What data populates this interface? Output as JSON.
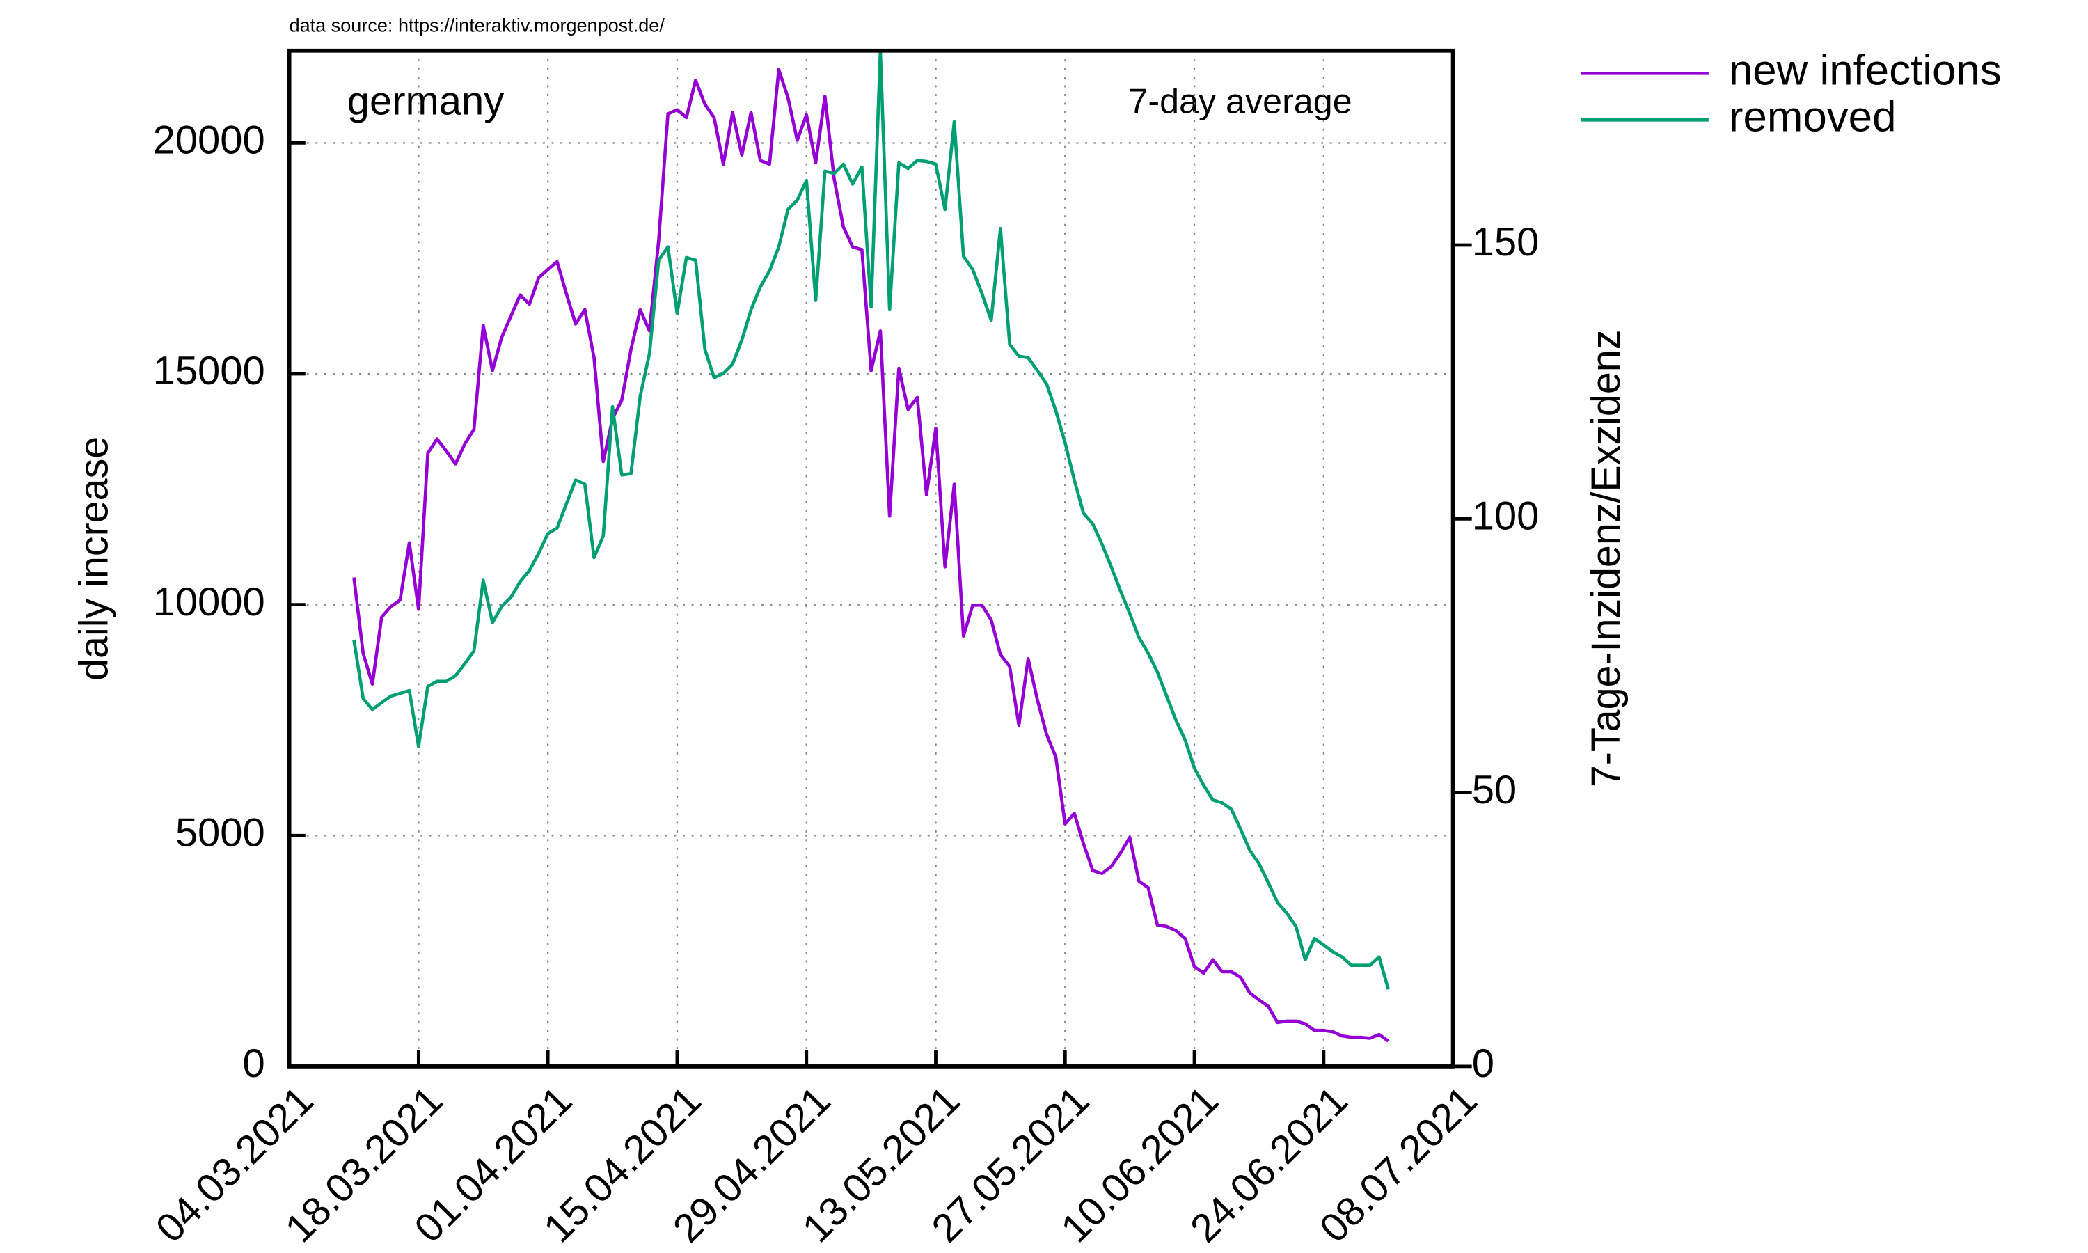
{
  "chart_data": {
    "type": "line",
    "source": "data source: https://interaktiv.morgenpost.de/",
    "region": "germany",
    "note": "7-day average",
    "ylabel": "daily increase",
    "y2label": "7-Tage-Inzidenz/Exzidenz",
    "xlim": [
      "04.03.2021",
      "08.07.2021"
    ],
    "xticks": [
      "04.03.2021",
      "18.03.2021",
      "01.04.2021",
      "15.04.2021",
      "29.04.2021",
      "13.05.2021",
      "27.05.2021",
      "10.06.2021",
      "24.06.2021",
      "08.07.2021"
    ],
    "ylim": [
      0,
      22000
    ],
    "yticks": [
      0,
      5000,
      10000,
      15000,
      20000
    ],
    "y2lim": [
      0,
      185.5
    ],
    "y2ticks": [
      0,
      50,
      100,
      150
    ],
    "grid": true,
    "legend": "outside-top-right",
    "x": [
      "11.03.2021",
      "12.03.2021",
      "13.03.2021",
      "14.03.2021",
      "15.03.2021",
      "16.03.2021",
      "17.03.2021",
      "18.03.2021",
      "19.03.2021",
      "20.03.2021",
      "21.03.2021",
      "22.03.2021",
      "23.03.2021",
      "24.03.2021",
      "25.03.2021",
      "26.03.2021",
      "27.03.2021",
      "28.03.2021",
      "29.03.2021",
      "30.03.2021",
      "31.03.2021",
      "01.04.2021",
      "02.04.2021",
      "03.04.2021",
      "04.04.2021",
      "05.04.2021",
      "06.04.2021",
      "07.04.2021",
      "08.04.2021",
      "09.04.2021",
      "10.04.2021",
      "11.04.2021",
      "12.04.2021",
      "13.04.2021",
      "14.04.2021",
      "15.04.2021",
      "16.04.2021",
      "17.04.2021",
      "18.04.2021",
      "19.04.2021",
      "20.04.2021",
      "21.04.2021",
      "22.04.2021",
      "23.04.2021",
      "24.04.2021",
      "25.04.2021",
      "26.04.2021",
      "27.04.2021",
      "28.04.2021",
      "29.04.2021",
      "30.04.2021",
      "01.05.2021",
      "02.05.2021",
      "03.05.2021",
      "04.05.2021",
      "05.05.2021",
      "06.05.2021",
      "07.05.2021",
      "08.05.2021",
      "09.05.2021",
      "10.05.2021",
      "11.05.2021",
      "12.05.2021",
      "13.05.2021",
      "14.05.2021",
      "15.05.2021",
      "16.05.2021",
      "17.05.2021",
      "18.05.2021",
      "19.05.2021",
      "20.05.2021",
      "21.05.2021",
      "22.05.2021",
      "23.05.2021",
      "24.05.2021",
      "25.05.2021",
      "26.05.2021",
      "27.05.2021",
      "28.05.2021",
      "29.05.2021",
      "30.05.2021",
      "31.05.2021",
      "01.06.2021",
      "02.06.2021",
      "03.06.2021",
      "04.06.2021",
      "05.06.2021",
      "06.06.2021",
      "07.06.2021",
      "08.06.2021",
      "09.06.2021",
      "10.06.2021",
      "11.06.2021",
      "12.06.2021",
      "13.06.2021",
      "14.06.2021",
      "15.06.2021",
      "16.06.2021",
      "17.06.2021",
      "18.06.2021",
      "19.06.2021",
      "20.06.2021",
      "21.06.2021",
      "22.06.2021",
      "23.06.2021",
      "24.06.2021",
      "25.06.2021",
      "26.06.2021",
      "27.06.2021",
      "28.06.2021",
      "29.06.2021",
      "30.06.2021",
      "01.07.2021"
    ],
    "series": [
      {
        "name": "new infections",
        "color": "#9400d3",
        "values": [
          10590,
          8950,
          8280,
          9730,
          9960,
          10100,
          11340,
          9900,
          13280,
          13590,
          13330,
          13050,
          13480,
          13800,
          16050,
          15070,
          15790,
          16250,
          16710,
          16510,
          17080,
          17260,
          17430,
          16740,
          16080,
          16390,
          15350,
          13100,
          14030,
          14430,
          15530,
          16390,
          15930,
          17890,
          20630,
          20720,
          20550,
          21360,
          20840,
          20550,
          19540,
          20660,
          19740,
          20660,
          19620,
          19540,
          21590,
          20980,
          20060,
          20610,
          19570,
          21010,
          19220,
          18180,
          17750,
          17690,
          15070,
          15930,
          11920,
          15120,
          14230,
          14490,
          12380,
          13820,
          10820,
          12610,
          9320,
          9990,
          9990,
          9670,
          8920,
          8660,
          7390,
          8830,
          7940,
          7190,
          6700,
          5250,
          5480,
          4820,
          4240,
          4180,
          4330,
          4620,
          4960,
          4010,
          3870,
          3060,
          3030,
          2940,
          2770,
          2160,
          2020,
          2310,
          2050,
          2050,
          1930,
          1590,
          1440,
          1300,
          950,
          980,
          980,
          920,
          780,
          780,
          750,
          660,
          630,
          630,
          610,
          690,
          550
        ]
      },
      {
        "name": "removed",
        "color": "#009e73",
        "values": [
          9240,
          7970,
          7730,
          7880,
          8020,
          8080,
          8140,
          6930,
          8230,
          8340,
          8340,
          8460,
          8720,
          9000,
          10530,
          9610,
          9960,
          10160,
          10500,
          10740,
          11110,
          11540,
          11660,
          12180,
          12700,
          12610,
          11020,
          11490,
          14290,
          12810,
          12840,
          14520,
          15440,
          17460,
          17750,
          16310,
          17520,
          17460,
          15530,
          14920,
          15010,
          15210,
          15730,
          16390,
          16880,
          17230,
          17750,
          18560,
          18760,
          19190,
          16590,
          19390,
          19340,
          19540,
          19110,
          19480,
          16450,
          21990,
          16390,
          19570,
          19450,
          19620,
          19600,
          19540,
          18560,
          20460,
          17550,
          17260,
          16740,
          16160,
          18150,
          15640,
          15380,
          15350,
          15070,
          14780,
          14200,
          13510,
          12700,
          11980,
          11750,
          11310,
          10820,
          10300,
          9810,
          9290,
          8950,
          8540,
          8020,
          7500,
          7070,
          6460,
          6090,
          5770,
          5710,
          5570,
          5140,
          4680,
          4390,
          3980,
          3550,
          3320,
          3030,
          2310,
          2770,
          2630,
          2480,
          2370,
          2190,
          2190,
          2190,
          2370,
          1670
        ]
      }
    ]
  }
}
